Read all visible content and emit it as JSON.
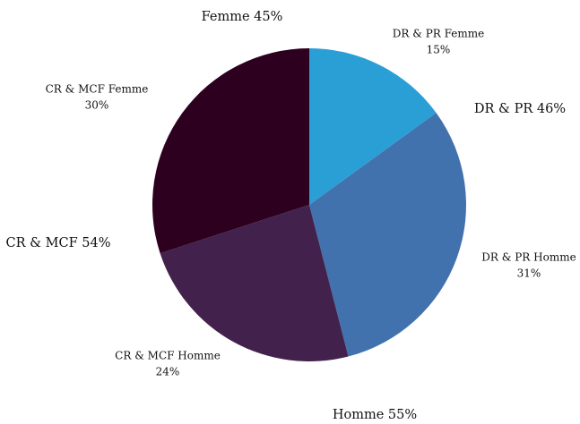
{
  "chart_data": {
    "type": "pie",
    "categories": [
      "DR & PR Femme",
      "DR & PR Homme",
      "CR & MCF Homme",
      "CR & MCF Femme"
    ],
    "values": [
      15,
      31,
      24,
      30
    ],
    "value_labels": [
      "15%",
      "31%",
      "24%",
      "30%"
    ],
    "colors": [
      "#2a9fd6",
      "#4272ad",
      "#42224d",
      "#2d0020"
    ],
    "annotations": [
      {
        "text": "Femme 45%"
      },
      {
        "text": "DR & PR 46%"
      },
      {
        "text": "CR & MCF 54%"
      },
      {
        "text": "Homme 55%"
      }
    ]
  }
}
